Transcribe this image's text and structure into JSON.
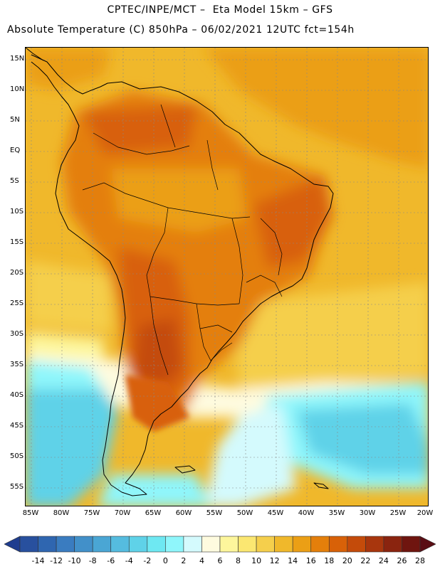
{
  "header": {
    "line1": "CPTEC/INPE/MCT –  Eta Model 15km – GFS",
    "line2": "Absolute Temperature (C) 850hPa – 06/02/2021 12UTC fct=154h"
  },
  "axes": {
    "lat_labels": [
      "15N",
      "10N",
      "5N",
      "EQ",
      "5S",
      "10S",
      "15S",
      "20S",
      "25S",
      "30S",
      "35S",
      "40S",
      "45S",
      "50S",
      "55S"
    ],
    "lon_labels": [
      "85W",
      "80W",
      "75W",
      "70W",
      "65W",
      "60W",
      "55W",
      "50W",
      "45W",
      "40W",
      "35W",
      "30W",
      "25W",
      "20W"
    ]
  },
  "colorbar": {
    "ticks": [
      "-14",
      "-12",
      "-10",
      "-8",
      "-6",
      "-4",
      "-2",
      "0",
      "2",
      "4",
      "6",
      "8",
      "10",
      "12",
      "14",
      "16",
      "18",
      "20",
      "22",
      "24",
      "26",
      "28"
    ],
    "colors": [
      "#1f3d8f",
      "#28509e",
      "#2f66b0",
      "#3a7cc0",
      "#4290c9",
      "#4aa6d4",
      "#55bcdf",
      "#5fd2e8",
      "#6ee8f2",
      "#8ff6fb",
      "#d4fafd",
      "#fefbdf",
      "#fdf69c",
      "#fbe771",
      "#f5cf4c",
      "#f0b82b",
      "#eb9f15",
      "#e47f0b",
      "#d86108",
      "#c44b0a",
      "#a8360d",
      "#8a240f",
      "#6f150f",
      "#5a0d14"
    ]
  },
  "legend_colors": {
    "ocean_warm": "#f0b82b",
    "land_hot": "#e47f0b",
    "cold_south": "#5fd2e8"
  }
}
